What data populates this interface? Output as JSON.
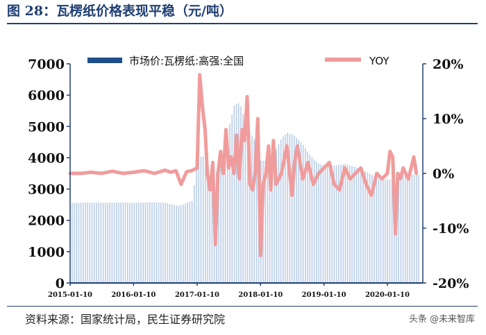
{
  "header": {
    "title": "图 28：瓦楞纸价格表现平稳（元/吨）"
  },
  "footer": {
    "source": "资料来源：国家统计局，民生证券研究院",
    "watermark": "头条 @未来智库"
  },
  "colors": {
    "bar": "#b9cde6",
    "bar_legend": "#1f4e8c",
    "line": "#f09c9c",
    "axis": "#1f3e73"
  },
  "chart_data": {
    "type": "bar+line",
    "title": "",
    "grid": false,
    "legend_position": "top",
    "x_tick_labels": [
      "2015-01-10",
      "2016-01-10",
      "2017-01-10",
      "2018-01-10",
      "2019-01-10",
      "2020-01-10"
    ],
    "y_left": {
      "min": 0,
      "max": 7000,
      "ticks": [
        "0",
        "1000",
        "2000",
        "3000",
        "4000",
        "5000",
        "6000",
        "7000"
      ]
    },
    "y_right": {
      "min": -20,
      "max": 20,
      "ticks": [
        "-20%",
        "-10%",
        "0%",
        "10%",
        "20%"
      ]
    },
    "series": [
      {
        "name": "市场价:瓦楞纸:高强:全国",
        "type": "bar",
        "axis": "left",
        "x": [
          "2015-01-10",
          "2015-04-10",
          "2015-07-10",
          "2015-10-10",
          "2016-01-10",
          "2016-04-10",
          "2016-07-10",
          "2016-09-10",
          "2016-10-10",
          "2016-11-10",
          "2016-12-10",
          "2017-01-10",
          "2017-02-10",
          "2017-03-10",
          "2017-04-10",
          "2017-05-10",
          "2017-06-10",
          "2017-07-10",
          "2017-08-10",
          "2017-09-10",
          "2017-10-10",
          "2017-11-10",
          "2017-12-10",
          "2018-01-10",
          "2018-02-10",
          "2018-03-10",
          "2018-04-10",
          "2018-05-10",
          "2018-06-10",
          "2018-07-10",
          "2018-08-10",
          "2018-09-10",
          "2018-10-10",
          "2018-11-10",
          "2018-12-10",
          "2019-01-10",
          "2019-03-10",
          "2019-05-10",
          "2019-07-10",
          "2019-09-10",
          "2019-11-10",
          "2020-01-10",
          "2020-02-10",
          "2020-03-10",
          "2020-04-10",
          "2020-05-10",
          "2020-06-10"
        ],
        "values": [
          2550,
          2570,
          2560,
          2570,
          2560,
          2580,
          2560,
          2470,
          2480,
          2570,
          2620,
          4000,
          4050,
          3500,
          3300,
          3700,
          4100,
          5000,
          5700,
          5750,
          5200,
          4800,
          4500,
          3900,
          3900,
          3950,
          4300,
          4650,
          4800,
          4750,
          4600,
          4400,
          4150,
          3950,
          3800,
          3750,
          3750,
          3800,
          3700,
          3550,
          3350,
          3300,
          3320,
          3400,
          3450,
          3500,
          3450
        ]
      },
      {
        "name": "YOY",
        "type": "line",
        "axis": "right",
        "x": [
          "2015-01-10",
          "2015-03-10",
          "2015-05-10",
          "2015-07-10",
          "2015-09-10",
          "2015-11-10",
          "2016-01-10",
          "2016-03-10",
          "2016-05-10",
          "2016-07-10",
          "2016-08-10",
          "2016-09-10",
          "2016-10-10",
          "2016-11-10",
          "2016-12-10",
          "2017-01-10",
          "2017-01-25",
          "2017-02-10",
          "2017-02-25",
          "2017-03-10",
          "2017-03-25",
          "2017-04-10",
          "2017-04-25",
          "2017-05-10",
          "2017-05-25",
          "2017-06-10",
          "2017-06-25",
          "2017-07-10",
          "2017-07-25",
          "2017-08-10",
          "2017-08-25",
          "2017-09-10",
          "2017-09-25",
          "2017-10-10",
          "2017-10-25",
          "2017-11-10",
          "2017-11-25",
          "2017-12-10",
          "2017-12-25",
          "2018-01-10",
          "2018-01-25",
          "2018-02-10",
          "2018-02-25",
          "2018-03-10",
          "2018-03-25",
          "2018-04-10",
          "2018-05-10",
          "2018-06-10",
          "2018-07-10",
          "2018-07-25",
          "2018-08-10",
          "2018-09-10",
          "2018-10-10",
          "2018-11-10",
          "2018-12-10",
          "2019-01-10",
          "2019-02-10",
          "2019-03-10",
          "2019-04-10",
          "2019-05-10",
          "2019-06-10",
          "2019-07-10",
          "2019-08-10",
          "2019-09-10",
          "2019-10-10",
          "2019-11-10",
          "2019-12-10",
          "2020-01-10",
          "2020-01-25",
          "2020-02-10",
          "2020-02-25",
          "2020-03-10",
          "2020-03-25",
          "2020-04-10",
          "2020-05-10",
          "2020-06-10",
          "2020-06-25"
        ],
        "values": [
          0,
          0,
          0.2,
          0,
          0.4,
          0,
          0.2,
          0.5,
          0,
          0.6,
          0.2,
          0.5,
          -2,
          0.3,
          0.5,
          1,
          18,
          12,
          8,
          0,
          -3,
          2,
          -13,
          0,
          4,
          0,
          8,
          1,
          3,
          0,
          7,
          -1,
          8,
          6,
          14,
          -2,
          -3,
          0,
          10,
          -15,
          -2,
          0,
          5,
          -3,
          6,
          -2,
          0,
          5,
          -4,
          2,
          5,
          -1,
          2,
          -2,
          0,
          1,
          2,
          -2,
          -3,
          1,
          -1,
          0,
          1,
          -2,
          -4,
          0,
          -1,
          0,
          4,
          3,
          -11,
          0,
          -1,
          1,
          -1,
          3,
          0
        ]
      }
    ]
  }
}
